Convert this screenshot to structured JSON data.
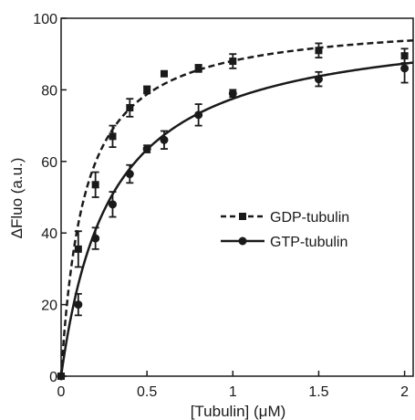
{
  "chart_data": {
    "type": "scatter",
    "xlabel": "[Tubulin] (μM)",
    "ylabel": "ΔFluo (a.u.)",
    "xlim": [
      0,
      2.05
    ],
    "ylim": [
      0,
      100
    ],
    "x_ticks": [
      0,
      0.5,
      1,
      1.5,
      2
    ],
    "x_tick_labels": [
      "0",
      "0.5",
      "1",
      "1.5",
      "2"
    ],
    "y_ticks": [
      0,
      20,
      40,
      60,
      80,
      100
    ],
    "y_tick_labels": [
      "0",
      "20",
      "40",
      "60",
      "80",
      "100"
    ],
    "grid": false,
    "legend_position": "center-right",
    "series": [
      {
        "name": "GDP-tubulin",
        "marker": "square",
        "line_style": "dashed",
        "color": "#1a1a1a",
        "fit": {
          "model": "hyperbolic",
          "bmax": 100,
          "kd": 0.135
        },
        "points": [
          {
            "x": 0,
            "y": 0,
            "err": 0
          },
          {
            "x": 0.1,
            "y": 35.5,
            "err": 5
          },
          {
            "x": 0.2,
            "y": 53.5,
            "err": 3.5
          },
          {
            "x": 0.3,
            "y": 67,
            "err": 3
          },
          {
            "x": 0.4,
            "y": 75,
            "err": 2.5
          },
          {
            "x": 0.5,
            "y": 80,
            "err": 1
          },
          {
            "x": 0.6,
            "y": 84.5,
            "err": 0.5
          },
          {
            "x": 0.8,
            "y": 86,
            "err": 1
          },
          {
            "x": 1.0,
            "y": 88,
            "err": 2
          },
          {
            "x": 1.5,
            "y": 91,
            "err": 2
          },
          {
            "x": 2.0,
            "y": 89.5,
            "err": 2
          }
        ]
      },
      {
        "name": "GTP-tubulin",
        "marker": "circle",
        "line_style": "solid",
        "color": "#1a1a1a",
        "fit": {
          "model": "hyperbolic",
          "bmax": 100,
          "kd": 0.29
        },
        "points": [
          {
            "x": 0,
            "y": 0,
            "err": 0
          },
          {
            "x": 0.1,
            "y": 20,
            "err": 3
          },
          {
            "x": 0.2,
            "y": 38.5,
            "err": 3
          },
          {
            "x": 0.3,
            "y": 48,
            "err": 3.5
          },
          {
            "x": 0.4,
            "y": 56.5,
            "err": 2.5
          },
          {
            "x": 0.5,
            "y": 63.5,
            "err": 1
          },
          {
            "x": 0.6,
            "y": 66,
            "err": 2.5
          },
          {
            "x": 0.8,
            "y": 73,
            "err": 3
          },
          {
            "x": 1.0,
            "y": 79,
            "err": 1
          },
          {
            "x": 1.5,
            "y": 83,
            "err": 2
          },
          {
            "x": 2.0,
            "y": 86,
            "err": 4
          }
        ]
      }
    ]
  }
}
